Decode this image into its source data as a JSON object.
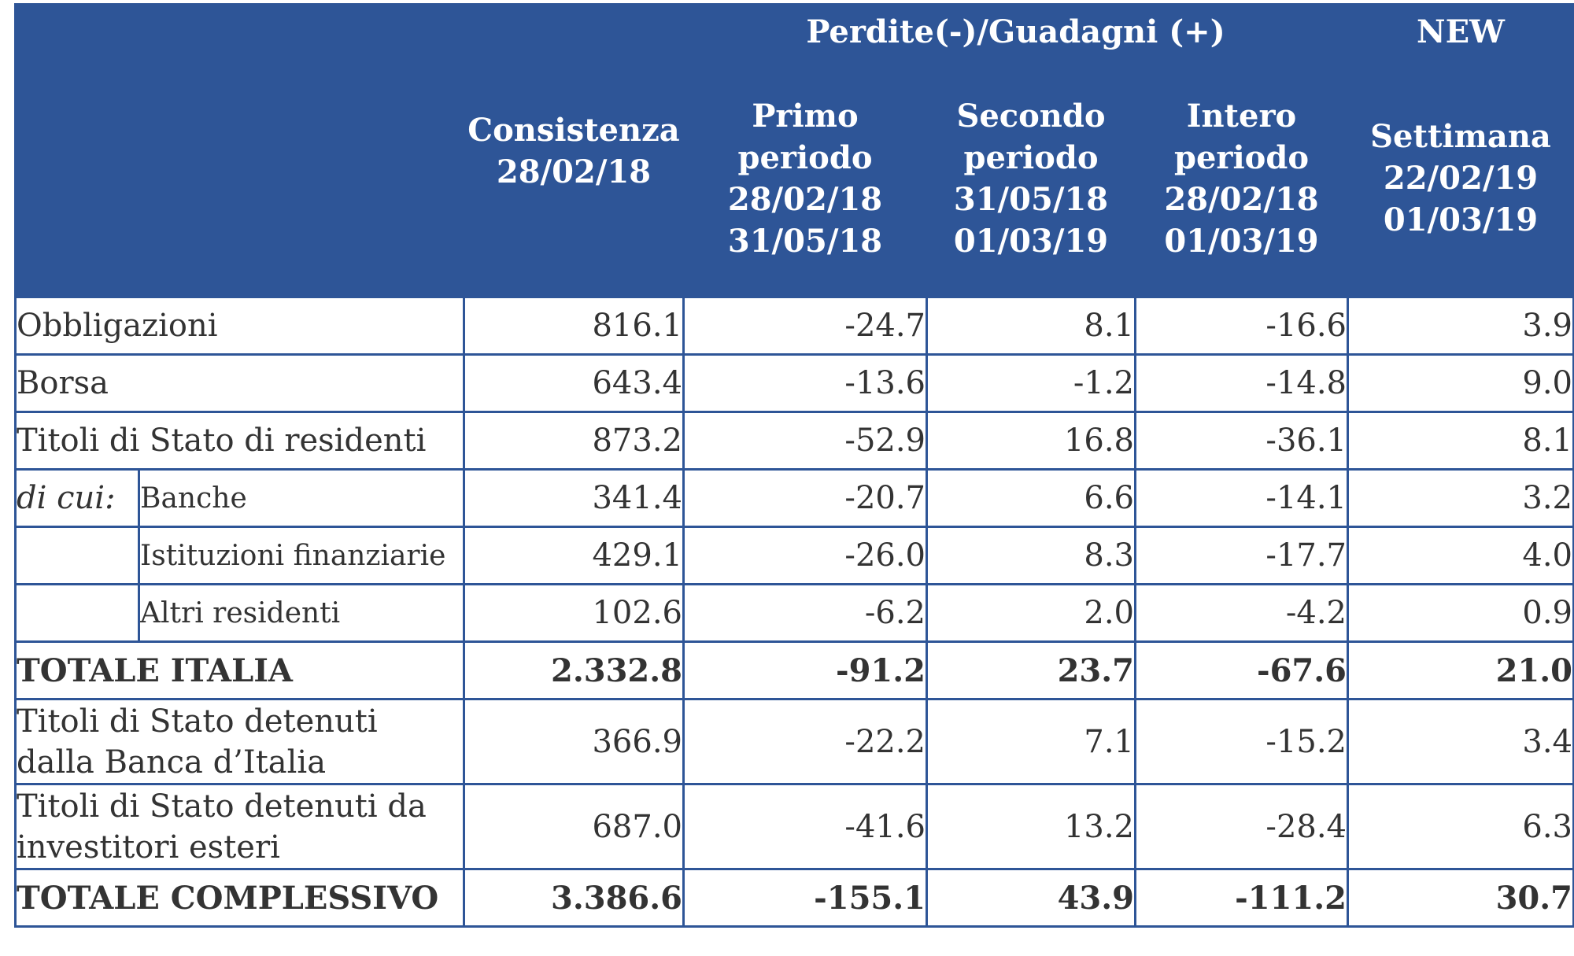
{
  "header": {
    "group_label": "Perdite(-)/Guadagni (+)",
    "new_label": "NEW",
    "consistenza": [
      "Consistenza",
      "28/02/18"
    ],
    "primo": [
      "Primo",
      "periodo",
      "28/02/18",
      "31/05/18"
    ],
    "secondo": [
      "Secondo",
      "periodo",
      "31/05/18",
      "01/03/19"
    ],
    "intero": [
      "Intero",
      "periodo",
      "28/02/18",
      "01/03/19"
    ],
    "settimana": [
      "Settimana",
      "22/02/19",
      "01/03/19"
    ]
  },
  "rows": {
    "obbligazioni": {
      "label": "Obbligazioni",
      "values": [
        "816.1",
        "-24.7",
        "8.1",
        "-16.6",
        "3.9"
      ]
    },
    "borsa": {
      "label": "Borsa",
      "values": [
        "643.4",
        "-13.6",
        "-1.2",
        "-14.8",
        "9.0"
      ]
    },
    "titoli_residenti": {
      "label": "Titoli di Stato di residenti",
      "values": [
        "873.2",
        "-52.9",
        "16.8",
        "-36.1",
        "8.1"
      ]
    },
    "banche": {
      "prefix": "di cui:",
      "label": "Banche",
      "values": [
        "341.4",
        "-20.7",
        "6.6",
        "-14.1",
        "3.2"
      ]
    },
    "istituzioni": {
      "label": "Istituzioni finanziarie",
      "values": [
        "429.1",
        "-26.0",
        "8.3",
        "-17.7",
        "4.0"
      ]
    },
    "altri": {
      "label": "Altri residenti",
      "values": [
        "102.6",
        "-6.2",
        "2.0",
        "-4.2",
        "0.9"
      ]
    },
    "totale_italia": {
      "label": "TOTALE ITALIA",
      "values": [
        "2.332.8",
        "-91.2",
        "23.7",
        "-67.6",
        "21.0"
      ]
    },
    "banca_italia": {
      "label": [
        "Titoli di Stato detenuti",
        "dalla Banca d’Italia"
      ],
      "values": [
        "366.9",
        "-22.2",
        "7.1",
        "-15.2",
        "3.4"
      ]
    },
    "esteri": {
      "label": [
        "Titoli di Stato detenuti da",
        "investitori esteri"
      ],
      "values": [
        "687.0",
        "-41.6",
        "13.2",
        "-28.4",
        "6.3"
      ]
    },
    "totale_complessivo": {
      "label": "TOTALE COMPLESSIVO",
      "values": [
        "3.386.6",
        "-155.1",
        "43.9",
        "-111.2",
        "30.7"
      ]
    }
  },
  "colors": {
    "header_bg": "#2e5597",
    "header_text": "#ffffff",
    "border": "#2e5597",
    "body_text": "#333333"
  }
}
